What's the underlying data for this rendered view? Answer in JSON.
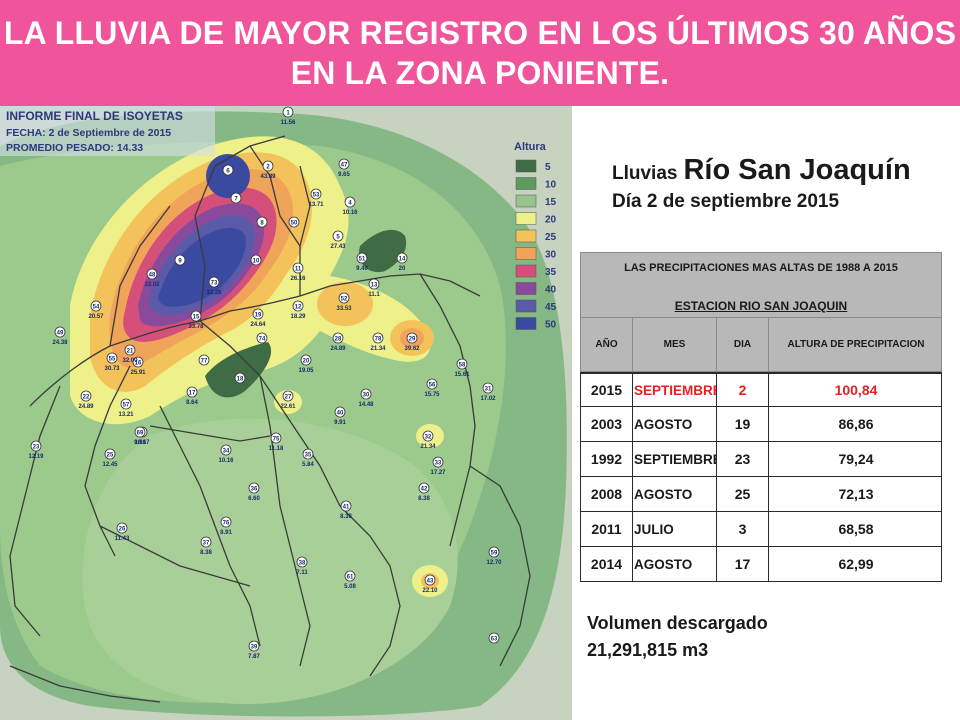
{
  "banner": {
    "line1": "LA LLUVIA DE MAYOR REGISTRO EN LOS ÚLTIMOS 30 AÑOS",
    "line2": "EN LA ZONA PONIENTE."
  },
  "map": {
    "report_title": "INFORME FINAL DE ISOYETAS",
    "report_date": "FECHA: 2 de Septiembre de 2015",
    "report_avg": "PROMEDIO PESADO: 14.33",
    "legend_title": "Altura",
    "legend": [
      {
        "label": "5",
        "color": "#3f6b45"
      },
      {
        "label": "10",
        "color": "#5e9a5e"
      },
      {
        "label": "15",
        "color": "#96c48a"
      },
      {
        "label": "20",
        "color": "#eef08a"
      },
      {
        "label": "25",
        "color": "#f3c25a"
      },
      {
        "label": "30",
        "color": "#f0a45a"
      },
      {
        "label": "35",
        "color": "#d4507a"
      },
      {
        "label": "40",
        "color": "#8a4a9c"
      },
      {
        "label": "45",
        "color": "#5a5aa8"
      },
      {
        "label": "50",
        "color": "#3a4aa0"
      }
    ],
    "stations": [
      {
        "id": "1",
        "val": "11.56"
      },
      {
        "id": "2",
        "val": "43.89"
      },
      {
        "id": "4",
        "val": "10.16"
      },
      {
        "id": "5",
        "val": "27.43"
      },
      {
        "id": "6",
        "val": ""
      },
      {
        "id": "7",
        "val": ""
      },
      {
        "id": "8",
        "val": ""
      },
      {
        "id": "9",
        "val": ""
      },
      {
        "id": "10",
        "val": ""
      },
      {
        "id": "11",
        "val": "26.16"
      },
      {
        "id": "12",
        "val": "18.29"
      },
      {
        "id": "13",
        "val": "11.1"
      },
      {
        "id": "14",
        "val": "20"
      },
      {
        "id": "15",
        "val": "33.78"
      },
      {
        "id": "16",
        "val": "25.91"
      },
      {
        "id": "17",
        "val": "8.64"
      },
      {
        "id": "18",
        "val": ""
      },
      {
        "id": "19",
        "val": "24.64"
      },
      {
        "id": "20",
        "val": "19.05"
      },
      {
        "id": "21",
        "val": "32.00"
      },
      {
        "id": "22",
        "val": "24.89"
      },
      {
        "id": "23",
        "val": "12.19"
      },
      {
        "id": "24",
        "val": "10.67"
      },
      {
        "id": "25",
        "val": "12.45"
      },
      {
        "id": "26",
        "val": "11.43"
      },
      {
        "id": "27",
        "val": "22.61"
      },
      {
        "id": "28",
        "val": "24.89"
      },
      {
        "id": "29",
        "val": "39.62"
      },
      {
        "id": "30",
        "val": "14.48"
      },
      {
        "id": "31",
        "val": "17.02"
      },
      {
        "id": "32",
        "val": "21.34"
      },
      {
        "id": "33",
        "val": "17.27"
      },
      {
        "id": "34",
        "val": "10.16"
      },
      {
        "id": "35",
        "val": "5.84"
      },
      {
        "id": "36",
        "val": "6.60"
      },
      {
        "id": "37",
        "val": "8.38"
      },
      {
        "id": "38",
        "val": "7.11"
      },
      {
        "id": "39",
        "val": "7.87"
      },
      {
        "id": "40",
        "val": "9.91"
      },
      {
        "id": "41",
        "val": "8.38"
      },
      {
        "id": "42",
        "val": "8.38"
      },
      {
        "id": "43",
        "val": "22.10"
      },
      {
        "id": "47",
        "val": "9.65"
      },
      {
        "id": "48",
        "val": "33.02"
      },
      {
        "id": "49",
        "val": "24.38"
      },
      {
        "id": "50",
        "val": ""
      },
      {
        "id": "51",
        "val": "9.40"
      },
      {
        "id": "52",
        "val": "33.53"
      },
      {
        "id": "53",
        "val": "13.71"
      },
      {
        "id": "54",
        "val": "20.57"
      },
      {
        "id": "55",
        "val": "30.73"
      },
      {
        "id": "56",
        "val": "15.75"
      },
      {
        "id": "57",
        "val": "13.21"
      },
      {
        "id": "58",
        "val": "15.61"
      },
      {
        "id": "59",
        "val": "12.70"
      },
      {
        "id": "61",
        "val": "5.08"
      },
      {
        "id": "63",
        "val": ""
      },
      {
        "id": "69",
        "val": "9.91"
      },
      {
        "id": "73",
        "val": "32.26"
      },
      {
        "id": "74",
        "val": ""
      },
      {
        "id": "75",
        "val": "11.18"
      },
      {
        "id": "76",
        "val": "8.91"
      },
      {
        "id": "77",
        "val": ""
      },
      {
        "id": "78",
        "val": "21.34"
      }
    ]
  },
  "subtitle": {
    "prefix": "Lluvias",
    "river": "Río San Joaquín",
    "date": "Día 2 de septiembre 2015"
  },
  "table": {
    "title": "LAS PRECIPITACIONES MAS ALTAS DE 1988 A 2015",
    "station": "ESTACION RIO SAN JOAQUIN",
    "headers": [
      "AÑO",
      "MES",
      "DIA",
      "ALTURA DE PRECIPITACION"
    ],
    "rows": [
      {
        "year": "2015",
        "month": "SEPTIEMBRE",
        "day": "2",
        "value": "100,84",
        "highlight": true
      },
      {
        "year": "2003",
        "month": "AGOSTO",
        "day": "19",
        "value": "86,86",
        "highlight": false
      },
      {
        "year": "1992",
        "month": "SEPTIEMBRE",
        "day": "23",
        "value": "79,24",
        "highlight": false
      },
      {
        "year": "2008",
        "month": "AGOSTO",
        "day": "25",
        "value": "72,13",
        "highlight": false
      },
      {
        "year": "2011",
        "month": "JULIO",
        "day": "3",
        "value": "68,58",
        "highlight": false
      },
      {
        "year": "2014",
        "month": "AGOSTO",
        "day": "17",
        "value": "62,99",
        "highlight": false
      }
    ]
  },
  "volume": {
    "label": "Volumen descargado",
    "value": "21,291,815 m3"
  }
}
